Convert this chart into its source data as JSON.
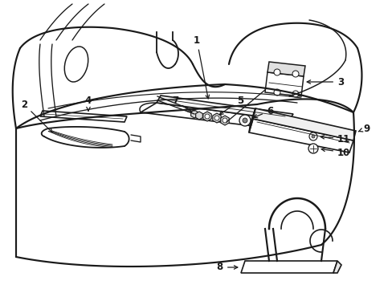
{
  "background_color": "#ffffff",
  "line_color": "#1a1a1a",
  "line_width": 1.2,
  "figure_width": 4.89,
  "figure_height": 3.6,
  "dpi": 100
}
